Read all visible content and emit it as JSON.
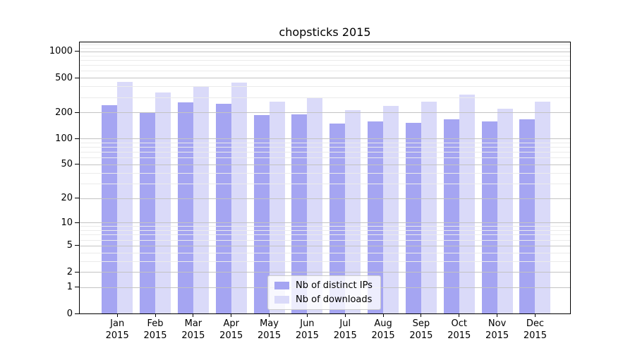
{
  "title": "chopsticks 2015",
  "chart_data": {
    "type": "bar",
    "title": "chopsticks 2015",
    "categories": [
      "Jan 2015",
      "Feb 2015",
      "Mar 2015",
      "Apr 2015",
      "May 2015",
      "Jun 2015",
      "Jul 2015",
      "Aug 2015",
      "Sep 2015",
      "Oct 2015",
      "Nov 2015",
      "Dec 2015"
    ],
    "x_months": [
      "Jan",
      "Feb",
      "Mar",
      "Apr",
      "May",
      "Jun",
      "Jul",
      "Aug",
      "Sep",
      "Oct",
      "Nov",
      "Dec"
    ],
    "x_year": "2015",
    "series": [
      {
        "name": "Nb of distinct IPs",
        "color": "#a5a5f2",
        "values": [
          240,
          198,
          260,
          252,
          185,
          190,
          150,
          157,
          153,
          167,
          158,
          165
        ]
      },
      {
        "name": "Nb of downloads",
        "color": "#dadaf9",
        "values": [
          445,
          340,
          400,
          440,
          265,
          295,
          213,
          236,
          265,
          318,
          220,
          265
        ]
      }
    ],
    "xlabel": "",
    "ylabel": "",
    "yscale": "log1p",
    "y_ticks": [
      0,
      1,
      2,
      5,
      10,
      20,
      50,
      100,
      200,
      500,
      1000
    ],
    "y_minor_ticks": [
      3,
      4,
      6,
      7,
      8,
      9,
      30,
      40,
      60,
      70,
      80,
      90,
      300,
      400,
      600,
      700,
      800,
      900,
      1100,
      1200
    ],
    "ylim": [
      0,
      1290
    ],
    "grid": true,
    "legend_position": "lower center",
    "colors": {
      "grid_major": "#c3c3c3",
      "grid_minor": "#ebebeb",
      "axis": "#000000",
      "background": "#ffffff"
    }
  }
}
